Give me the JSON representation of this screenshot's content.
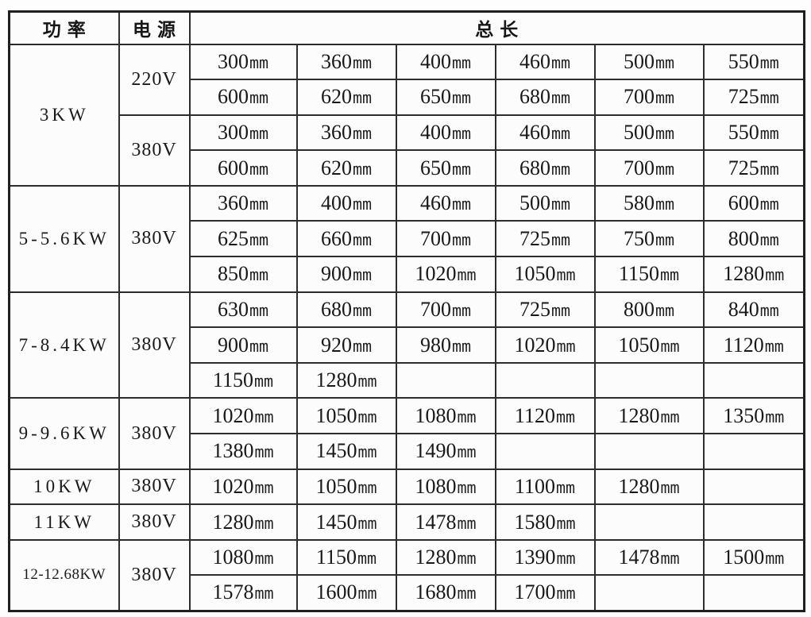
{
  "table": {
    "headers": {
      "power": "功率",
      "voltage": "电源",
      "length": "总长"
    },
    "unit_label": "mm",
    "colors": {
      "border": "#2d2d2d",
      "outer_border": "#1f1f1f",
      "text": "#1a1a1a",
      "background": "#fcfcfc"
    },
    "groups": [
      {
        "power": "3KW",
        "sections": [
          {
            "voltage": "220V",
            "rows": [
              [
                "300mm",
                "360mm",
                "400mm",
                "460mm",
                "500mm",
                "550mm"
              ],
              [
                "600mm",
                "620mm",
                "650mm",
                "680mm",
                "700mm",
                "725mm"
              ]
            ]
          },
          {
            "voltage": "380V",
            "rows": [
              [
                "300mm",
                "360mm",
                "400mm",
                "460mm",
                "500mm",
                "550mm"
              ],
              [
                "600mm",
                "620mm",
                "650mm",
                "680mm",
                "700mm",
                "725mm"
              ]
            ]
          }
        ]
      },
      {
        "power": "5-5.6KW",
        "sections": [
          {
            "voltage": "380V",
            "rows": [
              [
                "360mm",
                "400mm",
                "460mm",
                "500mm",
                "580mm",
                "600mm"
              ],
              [
                "625mm",
                "660mm",
                "700mm",
                "725mm",
                "750mm",
                "800mm"
              ],
              [
                "850mm",
                "900mm",
                "1020mm",
                "1050mm",
                "1150mm",
                "1280mm"
              ]
            ]
          }
        ]
      },
      {
        "power": "7-8.4KW",
        "sections": [
          {
            "voltage": "380V",
            "rows": [
              [
                "630mm",
                "680mm",
                "700mm",
                "725mm",
                "800mm",
                "840mm"
              ],
              [
                "900mm",
                "920mm",
                "980mm",
                "1020mm",
                "1050mm",
                "1120mm"
              ],
              [
                "1150mm",
                "1280mm",
                "",
                "",
                "",
                ""
              ]
            ]
          }
        ]
      },
      {
        "power": "9-9.6KW",
        "sections": [
          {
            "voltage": "380V",
            "rows": [
              [
                "1020mm",
                "1050mm",
                "1080mm",
                "1120mm",
                "1280mm",
                "1350mm"
              ],
              [
                "1380mm",
                "1450mm",
                "1490mm",
                "",
                "",
                ""
              ]
            ]
          }
        ]
      },
      {
        "power": "10KW",
        "sections": [
          {
            "voltage": "380V",
            "rows": [
              [
                "1020mm",
                "1050mm",
                "1080mm",
                "1100mm",
                "1280mm",
                ""
              ]
            ]
          }
        ]
      },
      {
        "power": "11KW",
        "sections": [
          {
            "voltage": "380V",
            "rows": [
              [
                "1280mm",
                "1450mm",
                "1478mm",
                "1580mm",
                "",
                ""
              ]
            ]
          }
        ]
      },
      {
        "power": "12-12.68KW",
        "sections": [
          {
            "voltage": "380V",
            "rows": [
              [
                "1080mm",
                "1150mm",
                "1280mm",
                "1390mm",
                "1478mm",
                "1500mm"
              ],
              [
                "1578mm",
                "1600mm",
                "1680mm",
                "1700mm",
                "",
                ""
              ]
            ]
          }
        ]
      }
    ]
  }
}
